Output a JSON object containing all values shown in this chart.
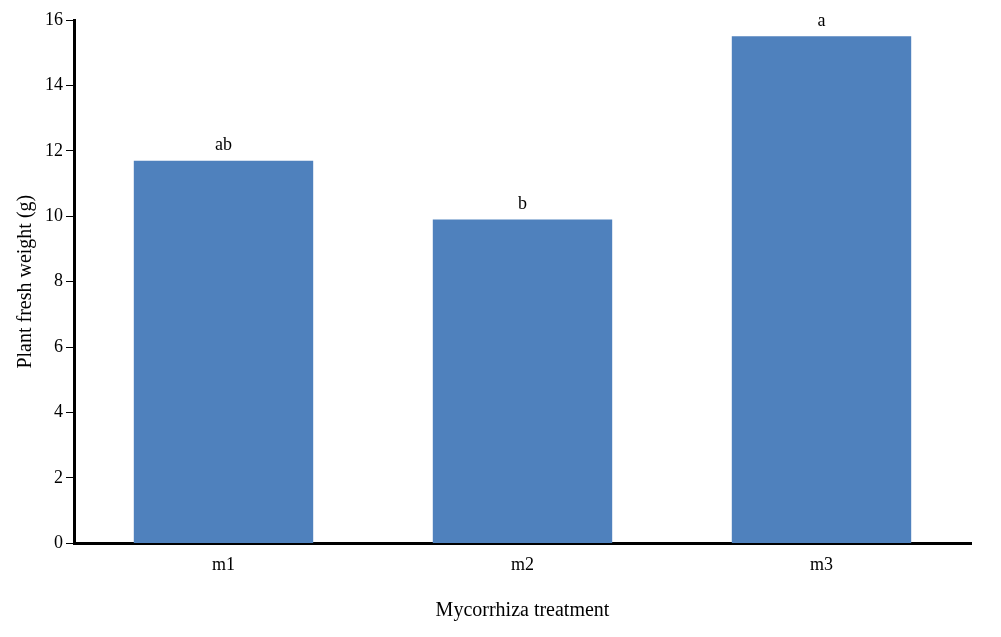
{
  "chart_data": {
    "type": "bar",
    "xlabel": "Mycorrhiza treatment",
    "ylabel": "Plant fresh weight (g)",
    "categories": [
      "m1",
      "m2",
      "m3"
    ],
    "values": [
      11.7,
      9.9,
      15.5
    ],
    "color": "#4f81bd",
    "ylim": [
      0,
      16
    ],
    "yticks": [
      0,
      2,
      4,
      6,
      8,
      10,
      12,
      14,
      16
    ],
    "grid": false,
    "legend": false,
    "annotations": [
      {
        "text": "ab",
        "x": "m1",
        "y": 11.7
      },
      {
        "text": "b",
        "x": "m2",
        "y": 9.9
      },
      {
        "text": "a",
        "x": "m3",
        "y": 15.5
      }
    ]
  }
}
